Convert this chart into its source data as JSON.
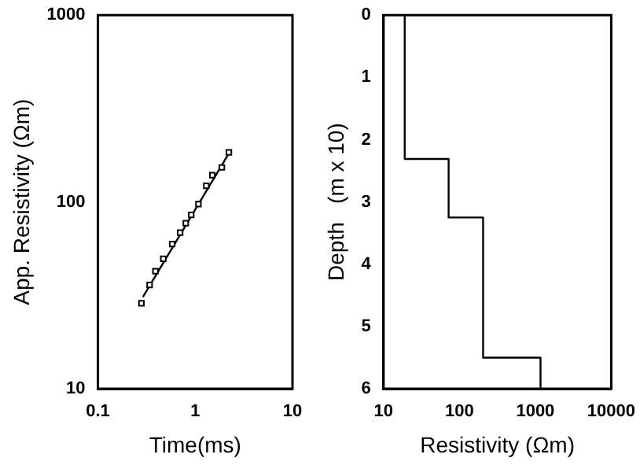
{
  "chart_data": [
    {
      "type": "scatter",
      "xlabel": "Time(ms)",
      "ylabel": "App. Resistivity (Ωm)",
      "log": "xy",
      "xlim": [
        0.1,
        10
      ],
      "ylim": [
        10,
        1000
      ],
      "xticks": [
        0.1,
        1,
        10
      ],
      "yticks": [
        10,
        100,
        1000
      ],
      "grid": false,
      "legend": false,
      "series": [
        {
          "color": "#000000",
          "marker": "square",
          "x": [
            0.28,
            0.34,
            0.39,
            0.47,
            0.58,
            0.7,
            0.8,
            0.91,
            1.08,
            1.3,
            1.5,
            1.88,
            2.22
          ],
          "values": [
            28.7,
            35.9,
            42.6,
            49.6,
            59.5,
            68.5,
            76.9,
            85.1,
            97.4,
            122,
            139,
            153,
            184
          ]
        },
        {
          "type": "line",
          "marker": "none",
          "color": "#000000",
          "x": [
            0.29,
            2.22
          ],
          "values": [
            31,
            182
          ]
        }
      ]
    },
    {
      "type": "line",
      "xlabel": "Resistivity (Ωm)",
      "ylabel": "Depth   (m x 10)",
      "log": "x",
      "xlim": [
        10,
        10000
      ],
      "ylim": [
        6,
        0
      ],
      "xticks": [
        10,
        100,
        1000,
        10000
      ],
      "yticks": [
        0,
        1,
        2,
        3,
        4,
        5,
        6
      ],
      "grid": false,
      "legend": false,
      "marker": "none",
      "line_style": "solid",
      "series": [
        {
          "color": "#000000",
          "x": [
            19,
            19,
            72,
            72,
            205,
            205,
            1170,
            1170
          ],
          "values": [
            0,
            2.31,
            2.31,
            3.25,
            3.25,
            5.5,
            5.5,
            6
          ]
        }
      ]
    }
  ]
}
